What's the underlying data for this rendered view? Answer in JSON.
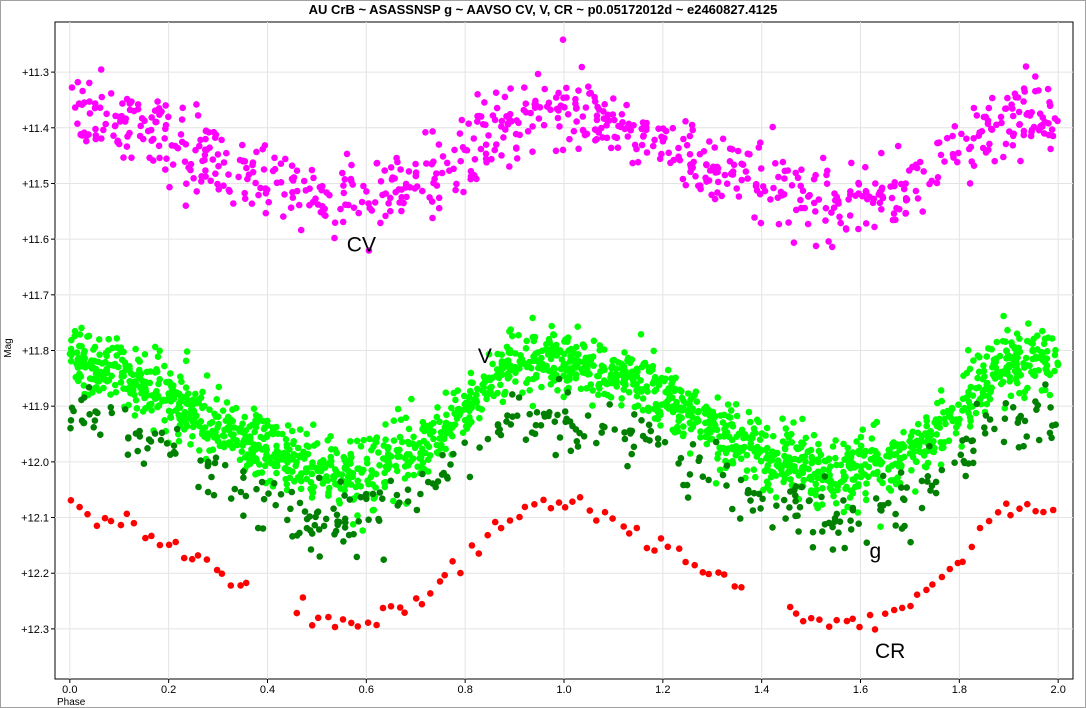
{
  "chart_data": {
    "type": "scatter",
    "title": "AU CrB ~ ASASSNSP g ~ AAVSO CV, V, CR ~ p0.05172012d ~ e2460827.4125",
    "xlabel": "Phase",
    "ylabel": "Mag",
    "xlim": [
      -0.03,
      2.03
    ],
    "ylim": [
      11.21,
      12.39
    ],
    "y_inverted": true,
    "grid": true,
    "x_ticks": [
      "0.0",
      "0.2",
      "0.4",
      "0.6",
      "0.8",
      "1.0",
      "1.2",
      "1.4",
      "1.6",
      "1.8",
      "2.0"
    ],
    "y_ticks": [
      "+11.3",
      "+11.4",
      "+11.5",
      "+11.6",
      "+11.7",
      "+11.8",
      "+11.9",
      "+12.0",
      "+12.1",
      "+12.2",
      "+12.3"
    ],
    "phase_curve": [
      [
        0.0,
        0.0
      ],
      [
        0.1,
        0.1
      ],
      [
        0.2,
        0.32
      ],
      [
        0.3,
        0.58
      ],
      [
        0.4,
        0.8
      ],
      [
        0.5,
        0.96
      ],
      [
        0.55,
        1.0
      ],
      [
        0.6,
        0.98
      ],
      [
        0.7,
        0.82
      ],
      [
        0.8,
        0.45
      ],
      [
        0.85,
        0.18
      ],
      [
        0.9,
        0.02
      ],
      [
        0.95,
        0.0
      ],
      [
        1.0,
        0.0
      ]
    ],
    "series": [
      {
        "name": "CV",
        "color": "#ff00ff",
        "label": "CV",
        "mag_bright": 11.37,
        "mag_faint": 11.53,
        "scatter": 0.07,
        "points_per_cycle": 380
      },
      {
        "name": "V",
        "color": "#00ff00",
        "label": "V",
        "mag_bright": 11.82,
        "mag_faint": 12.02,
        "scatter": 0.06,
        "points_per_cycle": 900
      },
      {
        "name": "g",
        "color": "#008000",
        "label": "g",
        "mag_bright": 11.92,
        "mag_faint": 12.1,
        "scatter": 0.06,
        "points_per_cycle": 170
      },
      {
        "name": "CR",
        "color": "#ff0000",
        "label": "CR",
        "mag_bright": 12.08,
        "mag_faint": 12.29,
        "scatter": 0.02,
        "points_per_cycle": 62
      }
    ]
  }
}
